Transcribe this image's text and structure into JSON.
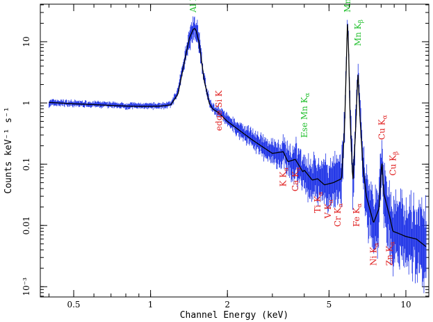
{
  "chart_data": {
    "type": "line",
    "title": "",
    "xlabel": "Channel Energy (keV)",
    "ylabel": "Counts keV⁻¹ s⁻¹",
    "x_scale": "log",
    "y_scale": "log",
    "xlim": [
      0.37,
      12.3
    ],
    "ylim": [
      0.00068,
      41
    ],
    "x_ticks": [
      {
        "value": 0.5,
        "label": "0.5"
      },
      {
        "value": 1,
        "label": "1"
      },
      {
        "value": 2,
        "label": "2"
      },
      {
        "value": 5,
        "label": "5"
      },
      {
        "value": 10,
        "label": "10"
      }
    ],
    "y_ticks": [
      {
        "value": 0.001,
        "label": "10⁻³"
      },
      {
        "value": 0.01,
        "label": "0.01"
      },
      {
        "value": 0.1,
        "label": "0.1"
      },
      {
        "value": 1,
        "label": "1"
      },
      {
        "value": 10,
        "label": "10"
      }
    ],
    "colors": {
      "data": "#1a2fe6",
      "model": "#000000",
      "green": "#22c02e",
      "red": "#e02020"
    },
    "series": [
      {
        "style": "data points with error bars (blue)",
        "x": [
          0.4,
          0.45,
          0.5,
          0.6,
          0.7,
          0.8,
          0.9,
          1.0,
          1.1,
          1.2,
          1.28,
          1.35,
          1.42,
          1.47,
          1.49,
          1.51,
          1.55,
          1.62,
          1.7,
          1.75,
          1.84,
          1.9,
          2.0,
          2.2,
          2.5,
          2.8,
          3.0,
          3.2,
          3.31,
          3.45,
          3.6,
          3.69,
          3.8,
          3.95,
          4.0,
          4.1,
          4.3,
          4.51,
          4.7,
          4.9,
          5.1,
          5.41,
          5.6,
          5.75,
          5.85,
          5.9,
          5.95,
          6.05,
          6.2,
          6.35,
          6.49,
          6.6,
          6.8,
          7.0,
          7.2,
          7.47,
          7.7,
          7.85,
          8.05,
          8.2,
          8.4,
          8.64,
          8.9,
          9.3,
          10.0,
          11.0,
          12.0
        ],
        "y": [
          1.0,
          1.0,
          0.98,
          0.95,
          0.92,
          0.9,
          0.9,
          0.89,
          0.9,
          0.95,
          1.5,
          4.5,
          12.0,
          16.0,
          16.5,
          15.5,
          10.0,
          2.5,
          1.0,
          0.82,
          0.72,
          0.65,
          0.52,
          0.38,
          0.26,
          0.18,
          0.15,
          0.13,
          0.17,
          0.12,
          0.09,
          0.13,
          0.09,
          0.07,
          0.085,
          0.06,
          0.055,
          0.06,
          0.045,
          0.045,
          0.055,
          0.05,
          0.06,
          0.4,
          5.0,
          20.0,
          12.0,
          0.6,
          0.05,
          0.35,
          3.5,
          0.7,
          0.09,
          0.03,
          0.018,
          0.011,
          0.012,
          0.02,
          0.12,
          0.035,
          0.014,
          0.015,
          0.008,
          0.0075,
          0.0065,
          0.006,
          0.005
        ],
        "err": [
          0.06,
          0.05,
          0.05,
          0.05,
          0.05,
          0.05,
          0.05,
          0.05,
          0.05,
          0.05,
          0.08,
          0.1,
          0.2,
          0.2,
          0.2,
          0.2,
          0.2,
          0.1,
          0.08,
          0.08,
          0.08,
          0.09,
          0.1,
          0.12,
          0.15,
          0.18,
          0.2,
          0.22,
          0.22,
          0.25,
          0.28,
          0.28,
          0.3,
          0.32,
          0.32,
          0.34,
          0.35,
          0.36,
          0.38,
          0.4,
          0.4,
          0.42,
          0.4,
          0.3,
          0.15,
          0.1,
          0.12,
          0.3,
          0.45,
          0.3,
          0.15,
          0.25,
          0.4,
          0.45,
          0.5,
          0.55,
          0.55,
          0.5,
          0.35,
          0.5,
          0.55,
          0.55,
          0.6,
          0.6,
          0.6,
          0.62,
          0.65
        ]
      },
      {
        "style": "model line (black)",
        "x": [
          0.4,
          0.5,
          0.6,
          0.7,
          0.8,
          0.9,
          1.0,
          1.1,
          1.2,
          1.28,
          1.35,
          1.42,
          1.47,
          1.49,
          1.51,
          1.55,
          1.62,
          1.7,
          1.75,
          1.84,
          2.0,
          2.5,
          3.0,
          3.31,
          3.45,
          3.69,
          3.95,
          4.0,
          4.3,
          4.51,
          4.8,
          5.2,
          5.6,
          5.75,
          5.85,
          5.9,
          5.95,
          6.05,
          6.2,
          6.35,
          6.49,
          6.6,
          6.8,
          7.0,
          7.47,
          7.85,
          8.05,
          8.2,
          8.64,
          8.9,
          9.3,
          10.0,
          11.0,
          12.0
        ],
        "y": [
          1.02,
          0.97,
          0.94,
          0.91,
          0.89,
          0.88,
          0.88,
          0.89,
          0.93,
          1.4,
          4.2,
          11.5,
          16.0,
          16.5,
          15.0,
          9.5,
          2.4,
          0.98,
          0.8,
          0.7,
          0.5,
          0.25,
          0.15,
          0.16,
          0.11,
          0.12,
          0.075,
          0.08,
          0.055,
          0.058,
          0.046,
          0.05,
          0.058,
          0.38,
          4.8,
          19.5,
          11.5,
          0.55,
          0.05,
          0.34,
          3.3,
          0.65,
          0.085,
          0.03,
          0.011,
          0.019,
          0.115,
          0.033,
          0.014,
          0.008,
          0.0075,
          0.0066,
          0.006,
          0.0045
        ]
      }
    ],
    "annotations": [
      {
        "text": "Al K",
        "sub": "α",
        "x": 1.47,
        "y": 30,
        "color": "green"
      },
      {
        "text": "edge Si K",
        "sub": "",
        "x": 1.85,
        "y": 0.35,
        "color": "red"
      },
      {
        "text": "Ese Mn K",
        "sub": "α",
        "x": 4.0,
        "y": 0.27,
        "color": "green"
      },
      {
        "text": "K K",
        "sub": "α",
        "x": 3.31,
        "y": 0.043,
        "color": "red"
      },
      {
        "text": "Ca K",
        "sub": "α",
        "x": 3.69,
        "y": 0.036,
        "color": "red"
      },
      {
        "text": "Ti K",
        "sub": "α",
        "x": 4.51,
        "y": 0.016,
        "color": "red"
      },
      {
        "text": "V K",
        "sub": "α",
        "x": 4.95,
        "y": 0.013,
        "color": "red"
      },
      {
        "text": "Cr K",
        "sub": "α",
        "x": 5.41,
        "y": 0.0095,
        "color": "red"
      },
      {
        "text": "Mn K",
        "sub": "α",
        "x": 5.9,
        "y": 30,
        "color": "green"
      },
      {
        "text": "Mn K",
        "sub": "β",
        "x": 6.49,
        "y": 8.5,
        "color": "green"
      },
      {
        "text": "Fe K",
        "sub": "α",
        "x": 6.4,
        "y": 0.0095,
        "color": "red"
      },
      {
        "text": "Cu K",
        "sub": "α",
        "x": 8.05,
        "y": 0.25,
        "color": "red"
      },
      {
        "text": "Cu K",
        "sub": "β",
        "x": 8.9,
        "y": 0.065,
        "color": "red"
      },
      {
        "text": "Ni K",
        "sub": "α",
        "x": 7.47,
        "y": 0.0022,
        "color": "red"
      },
      {
        "text": "Zn K",
        "sub": "α",
        "x": 8.64,
        "y": 0.0022,
        "color": "red"
      }
    ]
  }
}
